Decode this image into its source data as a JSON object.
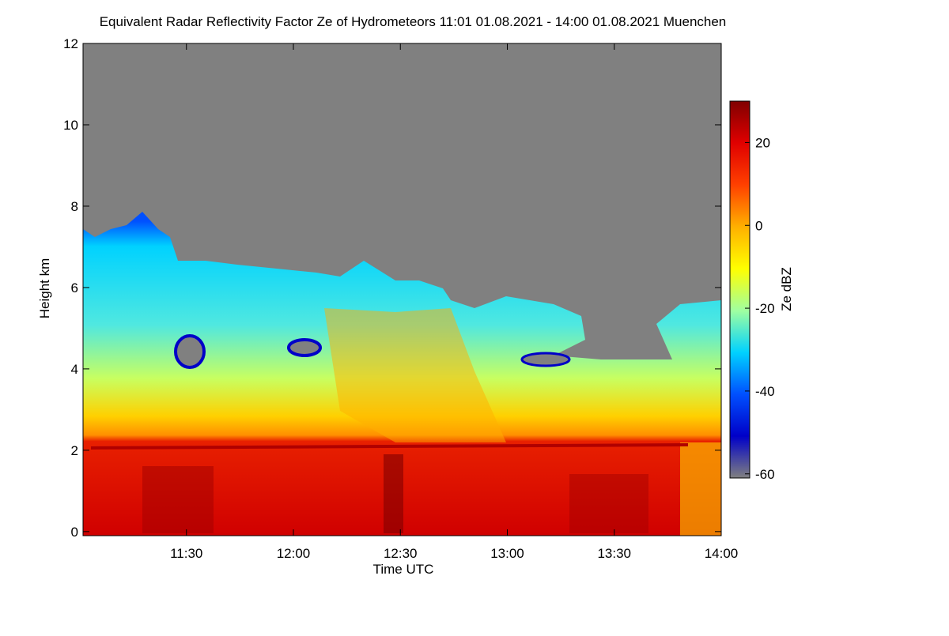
{
  "chart_data": {
    "type": "heatmap",
    "title": "Equivalent Radar Reflectivity Factor Ze of Hydrometeors   11:01 01.08.2021 - 14:00 01.08.2021 Muenchen",
    "xlabel": "Time UTC",
    "ylabel": "Height km",
    "colorbar_label": "Ze dBZ",
    "xlim": [
      661,
      840
    ],
    "xticks": [
      {
        "value": 690,
        "label": "11:30"
      },
      {
        "value": 720,
        "label": "12:00"
      },
      {
        "value": 750,
        "label": "12:30"
      },
      {
        "value": 780,
        "label": "13:00"
      },
      {
        "value": 810,
        "label": "13:30"
      },
      {
        "value": 840,
        "label": "14:00"
      }
    ],
    "ylim": [
      -0.1,
      12
    ],
    "yticks": [
      0,
      2,
      4,
      6,
      8,
      10,
      12
    ],
    "clim": [
      -61,
      30
    ],
    "cticks": [
      -60,
      -40,
      -20,
      0,
      20
    ],
    "colormap": [
      "#808080",
      "#0000c8",
      "#0050ff",
      "#00d2ff",
      "#a0ffa0",
      "#ffff00",
      "#ffb000",
      "#ff4000",
      "#e00000",
      "#800000"
    ]
  }
}
